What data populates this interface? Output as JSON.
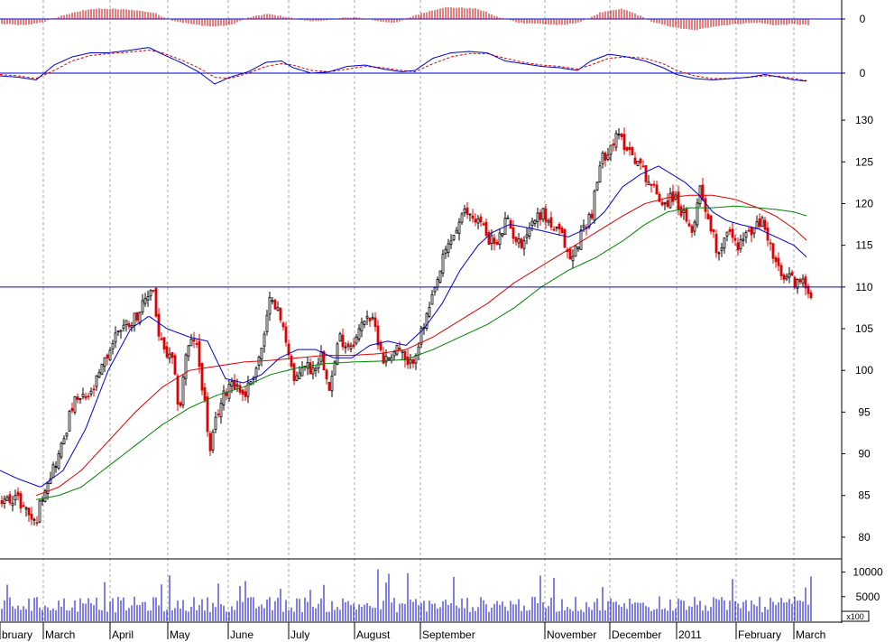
{
  "chart_data": {
    "type": "candlestick",
    "colors": {
      "up_candle": "#000000",
      "down_candle": "#e00000",
      "ma_short": "#0000cc",
      "ma_mid": "#dd0000",
      "ma_long": "#008000",
      "reference_line": "#0000cc",
      "histogram": "#cc0000",
      "macd": "#0000cc",
      "signal": "#dd0000",
      "volume": "#0000cc",
      "grid": "#aaaaaa"
    },
    "months": [
      "bruary",
      "March",
      "April",
      "May",
      "June",
      "July",
      "August",
      "September",
      "November",
      "December",
      "2011",
      "February",
      "March"
    ],
    "month_positions": [
      0,
      48,
      122,
      186,
      253,
      320,
      393,
      466,
      604,
      676,
      750,
      816,
      880
    ],
    "x_range": [
      0,
      905
    ],
    "price_panel": {
      "yticks": [
        80,
        85,
        90,
        95,
        100,
        105,
        110,
        115,
        120,
        125,
        130
      ],
      "ylim": [
        77.5,
        132.5
      ],
      "reference_level": 110,
      "close_anchors": [
        [
          0,
          84
        ],
        [
          15,
          85
        ],
        [
          30,
          83
        ],
        [
          38,
          81.5
        ],
        [
          48,
          86
        ],
        [
          65,
          90
        ],
        [
          80,
          96
        ],
        [
          100,
          97
        ],
        [
          115,
          101
        ],
        [
          130,
          105
        ],
        [
          145,
          106
        ],
        [
          160,
          108
        ],
        [
          168,
          110.5
        ],
        [
          175,
          104
        ],
        [
          182,
          102
        ],
        [
          190,
          101
        ],
        [
          198,
          95
        ],
        [
          205,
          102
        ],
        [
          215,
          104
        ],
        [
          225,
          97
        ],
        [
          232,
          90
        ],
        [
          240,
          95
        ],
        [
          255,
          99
        ],
        [
          270,
          97
        ],
        [
          285,
          101
        ],
        [
          292,
          104
        ],
        [
          300,
          109.5
        ],
        [
          310,
          106
        ],
        [
          318,
          103
        ],
        [
          326,
          98
        ],
        [
          335,
          101
        ],
        [
          345,
          100
        ],
        [
          355,
          102
        ],
        [
          365,
          98
        ],
        [
          375,
          104
        ],
        [
          385,
          103
        ],
        [
          395,
          104
        ],
        [
          405,
          107
        ],
        [
          415,
          105
        ],
        [
          425,
          101
        ],
        [
          440,
          103
        ],
        [
          452,
          100
        ],
        [
          465,
          104
        ],
        [
          480,
          109
        ],
        [
          492,
          114
        ],
        [
          505,
          117
        ],
        [
          515,
          119
        ],
        [
          530,
          118
        ],
        [
          540,
          116
        ],
        [
          550,
          115
        ],
        [
          560,
          118
        ],
        [
          575,
          115
        ],
        [
          590,
          118
        ],
        [
          600,
          119
        ],
        [
          612,
          117
        ],
        [
          622,
          116
        ],
        [
          632,
          113
        ],
        [
          645,
          117
        ],
        [
          655,
          119
        ],
        [
          665,
          125
        ],
        [
          675,
          127
        ],
        [
          685,
          128
        ],
        [
          700,
          126
        ],
        [
          712,
          124
        ],
        [
          722,
          122
        ],
        [
          735,
          120
        ],
        [
          745,
          121
        ],
        [
          755,
          119
        ],
        [
          765,
          116
        ],
        [
          775,
          122
        ],
        [
          785,
          118
        ],
        [
          795,
          114
        ],
        [
          805,
          117
        ],
        [
          815,
          115
        ],
        [
          825,
          116
        ],
        [
          835,
          117
        ],
        [
          845,
          118
        ],
        [
          855,
          114
        ],
        [
          865,
          111
        ],
        [
          875,
          111
        ],
        [
          885,
          110.5
        ],
        [
          895,
          110
        ],
        [
          900,
          109
        ]
      ],
      "ma_short_anchors": [
        [
          0,
          88
        ],
        [
          20,
          87
        ],
        [
          45,
          86
        ],
        [
          70,
          88
        ],
        [
          95,
          93
        ],
        [
          120,
          100
        ],
        [
          145,
          105
        ],
        [
          165,
          106.5
        ],
        [
          185,
          105
        ],
        [
          210,
          104
        ],
        [
          230,
          103.5
        ],
        [
          250,
          99
        ],
        [
          270,
          98.5
        ],
        [
          290,
          99.5
        ],
        [
          310,
          101.5
        ],
        [
          330,
          102.5
        ],
        [
          350,
          102.5
        ],
        [
          370,
          101.5
        ],
        [
          390,
          101.5
        ],
        [
          410,
          103
        ],
        [
          430,
          103.5
        ],
        [
          450,
          103
        ],
        [
          470,
          105
        ],
        [
          490,
          108
        ],
        [
          510,
          112
        ],
        [
          530,
          115
        ],
        [
          545,
          116.5
        ],
        [
          565,
          117.5
        ],
        [
          590,
          117
        ],
        [
          610,
          116.5
        ],
        [
          630,
          116
        ],
        [
          650,
          117
        ],
        [
          670,
          119
        ],
        [
          690,
          122
        ],
        [
          710,
          123.5
        ],
        [
          730,
          124.5
        ],
        [
          745,
          123.5
        ],
        [
          760,
          122.5
        ],
        [
          775,
          121
        ],
        [
          790,
          119
        ],
        [
          805,
          118
        ],
        [
          820,
          117.5
        ],
        [
          840,
          117
        ],
        [
          860,
          116
        ],
        [
          880,
          115
        ],
        [
          895,
          113.5
        ]
      ],
      "ma_mid_anchors": [
        [
          40,
          85
        ],
        [
          65,
          86
        ],
        [
          90,
          88
        ],
        [
          120,
          91.5
        ],
        [
          150,
          95
        ],
        [
          180,
          98
        ],
        [
          210,
          100
        ],
        [
          240,
          100.5
        ],
        [
          270,
          101
        ],
        [
          300,
          101.2
        ],
        [
          330,
          101.5
        ],
        [
          360,
          101.8
        ],
        [
          390,
          101.8
        ],
        [
          420,
          102
        ],
        [
          450,
          102.5
        ],
        [
          480,
          104
        ],
        [
          510,
          106
        ],
        [
          540,
          108
        ],
        [
          570,
          110.5
        ],
        [
          600,
          112.5
        ],
        [
          630,
          114.5
        ],
        [
          660,
          116.5
        ],
        [
          690,
          118.5
        ],
        [
          715,
          120
        ],
        [
          740,
          120.7
        ],
        [
          765,
          121
        ],
        [
          790,
          121
        ],
        [
          815,
          120.5
        ],
        [
          840,
          119.5
        ],
        [
          860,
          118.5
        ],
        [
          880,
          117
        ],
        [
          895,
          115.5
        ]
      ],
      "ma_long_anchors": [
        [
          40,
          84.5
        ],
        [
          65,
          85
        ],
        [
          90,
          86
        ],
        [
          120,
          88.5
        ],
        [
          150,
          91
        ],
        [
          180,
          93.5
        ],
        [
          210,
          95.5
        ],
        [
          240,
          97
        ],
        [
          270,
          98
        ],
        [
          300,
          99.5
        ],
        [
          330,
          100.3
        ],
        [
          360,
          100.8
        ],
        [
          390,
          101
        ],
        [
          420,
          101.1
        ],
        [
          450,
          101.3
        ],
        [
          480,
          102.5
        ],
        [
          510,
          104
        ],
        [
          540,
          105.5
        ],
        [
          570,
          107.5
        ],
        [
          600,
          110
        ],
        [
          630,
          112
        ],
        [
          660,
          113.5
        ],
        [
          690,
          115.5
        ],
        [
          715,
          117.5
        ],
        [
          740,
          119
        ],
        [
          765,
          119.5
        ],
        [
          790,
          119.5
        ],
        [
          815,
          119.7
        ],
        [
          840,
          119.5
        ],
        [
          860,
          119.3
        ],
        [
          880,
          119
        ],
        [
          895,
          118.5
        ]
      ]
    },
    "macd_panel": {
      "yticks": [
        0
      ],
      "macd_anchors": [
        [
          0,
          -0.1
        ],
        [
          20,
          -0.15
        ],
        [
          40,
          -0.25
        ],
        [
          60,
          0.3
        ],
        [
          80,
          0.6
        ],
        [
          100,
          0.75
        ],
        [
          120,
          0.75
        ],
        [
          145,
          0.85
        ],
        [
          165,
          0.95
        ],
        [
          180,
          0.7
        ],
        [
          200,
          0.4
        ],
        [
          220,
          0.05
        ],
        [
          238,
          -0.4
        ],
        [
          255,
          -0.15
        ],
        [
          275,
          0.05
        ],
        [
          295,
          0.4
        ],
        [
          312,
          0.45
        ],
        [
          325,
          0.2
        ],
        [
          345,
          0.0
        ],
        [
          365,
          0.05
        ],
        [
          385,
          0.25
        ],
        [
          405,
          0.3
        ],
        [
          425,
          0.15
        ],
        [
          445,
          0.05
        ],
        [
          460,
          0.1
        ],
        [
          480,
          0.55
        ],
        [
          500,
          0.75
        ],
        [
          520,
          0.8
        ],
        [
          540,
          0.75
        ],
        [
          560,
          0.45
        ],
        [
          580,
          0.35
        ],
        [
          600,
          0.25
        ],
        [
          620,
          0.2
        ],
        [
          640,
          0.1
        ],
        [
          655,
          0.45
        ],
        [
          675,
          0.7
        ],
        [
          695,
          0.6
        ],
        [
          715,
          0.45
        ],
        [
          735,
          0.2
        ],
        [
          750,
          -0.05
        ],
        [
          770,
          -0.2
        ],
        [
          790,
          -0.25
        ],
        [
          810,
          -0.2
        ],
        [
          830,
          -0.15
        ],
        [
          848,
          -0.05
        ],
        [
          865,
          -0.15
        ],
        [
          880,
          -0.25
        ],
        [
          895,
          -0.3
        ]
      ],
      "signal_anchors": [
        [
          0,
          -0.05
        ],
        [
          20,
          -0.1
        ],
        [
          40,
          -0.2
        ],
        [
          60,
          0.1
        ],
        [
          80,
          0.45
        ],
        [
          100,
          0.65
        ],
        [
          120,
          0.72
        ],
        [
          145,
          0.78
        ],
        [
          165,
          0.85
        ],
        [
          180,
          0.75
        ],
        [
          200,
          0.5
        ],
        [
          220,
          0.2
        ],
        [
          238,
          -0.15
        ],
        [
          255,
          -0.2
        ],
        [
          275,
          0.0
        ],
        [
          295,
          0.25
        ],
        [
          312,
          0.35
        ],
        [
          325,
          0.3
        ],
        [
          345,
          0.1
        ],
        [
          365,
          0.05
        ],
        [
          385,
          0.15
        ],
        [
          405,
          0.25
        ],
        [
          425,
          0.2
        ],
        [
          445,
          0.1
        ],
        [
          460,
          0.05
        ],
        [
          480,
          0.35
        ],
        [
          500,
          0.6
        ],
        [
          520,
          0.72
        ],
        [
          540,
          0.72
        ],
        [
          560,
          0.55
        ],
        [
          580,
          0.4
        ],
        [
          600,
          0.3
        ],
        [
          620,
          0.25
        ],
        [
          640,
          0.15
        ],
        [
          655,
          0.3
        ],
        [
          675,
          0.55
        ],
        [
          695,
          0.6
        ],
        [
          715,
          0.55
        ],
        [
          735,
          0.35
        ],
        [
          750,
          0.1
        ],
        [
          770,
          -0.1
        ],
        [
          790,
          -0.2
        ],
        [
          810,
          -0.2
        ],
        [
          830,
          -0.15
        ],
        [
          848,
          -0.1
        ],
        [
          865,
          -0.12
        ],
        [
          880,
          -0.2
        ],
        [
          895,
          -0.28
        ]
      ]
    },
    "hist_panel": {
      "yticks": [
        0
      ],
      "anchors": [
        [
          0,
          -0.4
        ],
        [
          30,
          -0.5
        ],
        [
          50,
          -0.2
        ],
        [
          70,
          0.3
        ],
        [
          100,
          0.8
        ],
        [
          125,
          0.8
        ],
        [
          150,
          0.7
        ],
        [
          170,
          0.5
        ],
        [
          190,
          -0.1
        ],
        [
          210,
          -0.4
        ],
        [
          235,
          -0.6
        ],
        [
          255,
          -0.5
        ],
        [
          275,
          0.1
        ],
        [
          295,
          0.4
        ],
        [
          315,
          0.2
        ],
        [
          335,
          -0.1
        ],
        [
          355,
          -0.2
        ],
        [
          380,
          0.1
        ],
        [
          400,
          0.1
        ],
        [
          420,
          -0.2
        ],
        [
          440,
          -0.3
        ],
        [
          460,
          0.3
        ],
        [
          490,
          0.9
        ],
        [
          510,
          0.9
        ],
        [
          530,
          0.8
        ],
        [
          550,
          0.2
        ],
        [
          575,
          -0.3
        ],
        [
          600,
          -0.4
        ],
        [
          625,
          -0.5
        ],
        [
          645,
          -0.2
        ],
        [
          665,
          0.5
        ],
        [
          690,
          0.8
        ],
        [
          705,
          0.4
        ],
        [
          725,
          -0.3
        ],
        [
          750,
          -0.7
        ],
        [
          770,
          -0.9
        ],
        [
          790,
          -0.6
        ],
        [
          815,
          -0.4
        ],
        [
          840,
          -0.3
        ],
        [
          860,
          -0.5
        ],
        [
          880,
          -0.4
        ],
        [
          898,
          -0.5
        ]
      ]
    },
    "volume_panel": {
      "yticks": [
        5000,
        10000
      ],
      "ylim": [
        0,
        12500
      ],
      "unit_label": "x100"
    }
  }
}
